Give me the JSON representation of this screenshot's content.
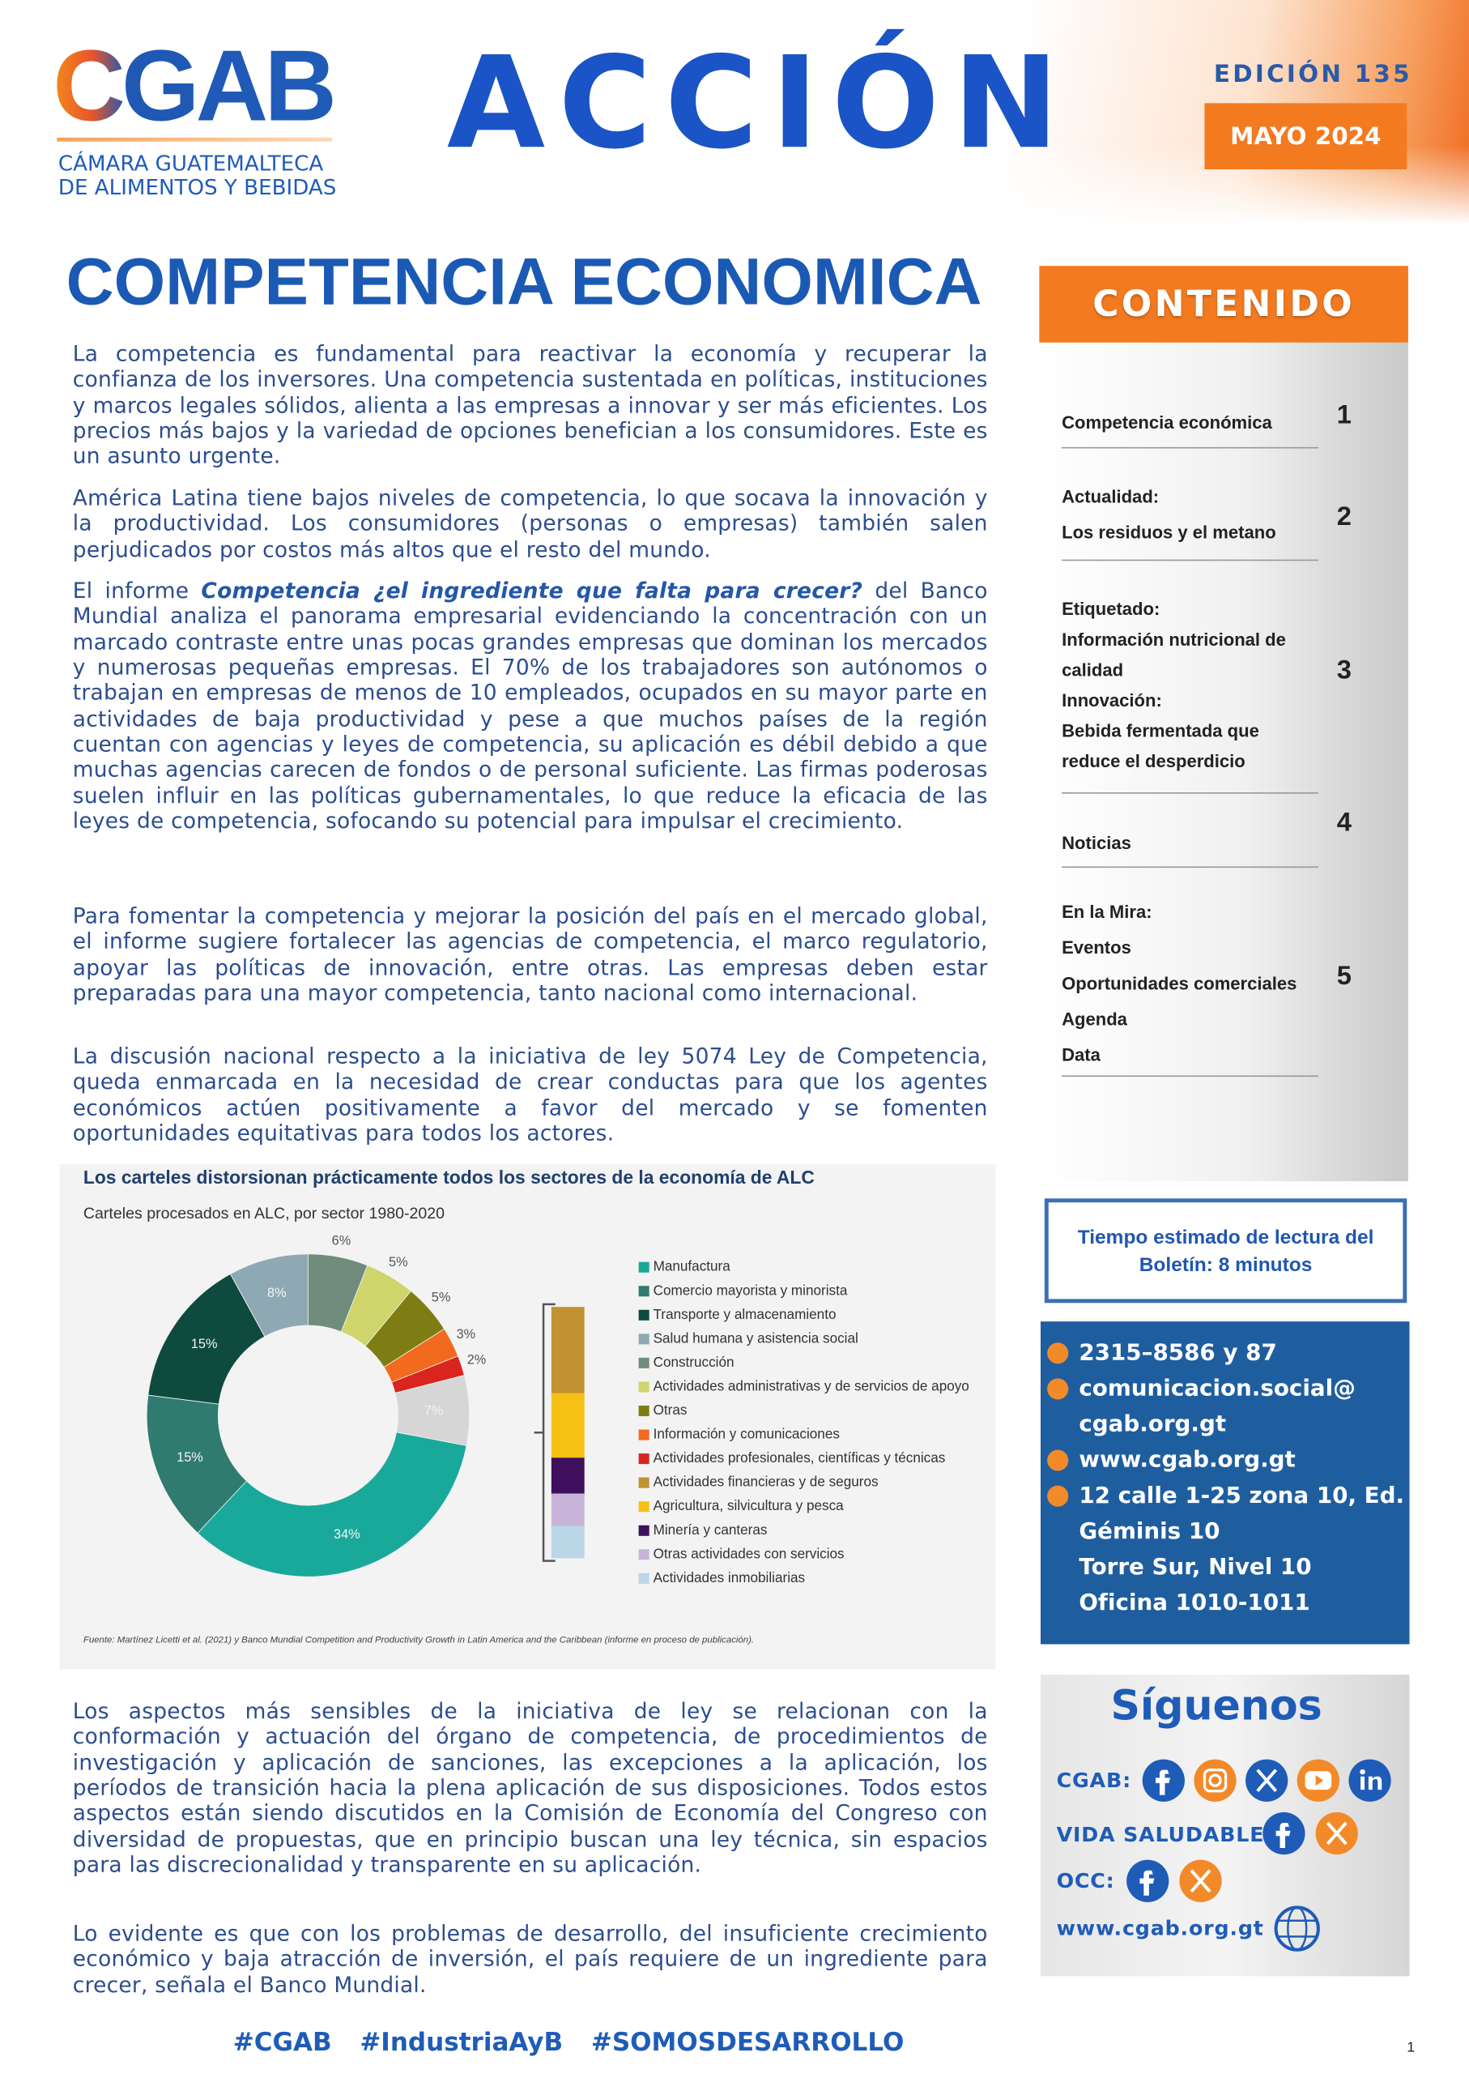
{
  "header": {
    "logo": "CGAB",
    "org_line1": "CÁMARA GUATEMALTECA",
    "org_line2": "DE ALIMENTOS Y BEBIDAS",
    "title": "ACCIÓN",
    "edition": "EDICIÓN 135",
    "date": "MAYO 2024"
  },
  "article": {
    "title": "COMPETENCIA ECONOMICA",
    "paragraphs": [
      "La competencia es fundamental para reactivar la economía y recuperar la confianza de los inversores. Una competencia  sustentada en políticas, instituciones y marcos legales sólidos, alienta a las empresas a innovar y ser más eficientes.  Los precios más bajos y la variedad de opciones benefician a los consumidores.  Este es un asunto urgente.",
      "América Latina tiene bajos niveles de competencia, lo que socava la innovación y la productividad. Los consumidores (personas o empresas) también salen perjudicados por costos más altos que el resto del mundo.",
      {
        "before": "El informe ",
        "emphasis": "Competencia ¿el ingrediente que falta para crecer?",
        "after": " del Banco Mundial analiza el panorama empresarial evidenciando la concentración con un marcado contraste entre unas pocas grandes empresas que dominan los mercados y numerosas pequeñas empresas. El 70% de los trabajadores son autónomos o trabajan en empresas de menos de 10 empleados, ocupados en su mayor parte en actividades de baja productividad y pese a que muchos países de la región cuentan con agencias y leyes de competencia, su aplicación es débil debido a que muchas agencias carecen de fondos o de personal suficiente. Las firmas poderosas suelen influir en las políticas gubernamentales, lo que reduce la eficacia de las leyes de competencia, sofocando su  potencial para impulsar el crecimiento."
      },
      "Para fomentar la competencia y mejorar la posición del país en el mercado global, el informe sugiere fortalecer las agencias de competencia, el marco regulatorio, apoyar las políticas de innovación, entre otras. Las empresas deben estar preparadas para una mayor competencia, tanto nacional como internacional.",
      "La discusión nacional respecto a la iniciativa de ley 5074 Ley de Competencia, queda enmarcada en la necesidad de crear conductas  para que los agentes económicos actúen positivamente a favor del mercado y se fomenten oportunidades equitativas para todos los actores.",
      "Los aspectos más sensibles de la iniciativa de ley se relacionan con la conformación y actuación del órgano de competencia, de procedimientos de investigación y aplicación de sanciones, las excepciones a la aplicación, los períodos de transición hacia la plena aplicación de sus disposiciones. Todos estos aspectos están siendo discutidos en la Comisión de Economía del Congreso con diversidad de propuestas, que en principio buscan una ley técnica, sin espacios para las discrecionalidad y transparente en su aplicación.",
      "Lo evidente es que con los problemas de desarrollo, del insuficiente crecimiento económico y baja atracción de inversión, el país requiere de un ingrediente para crecer,  señala el Banco Mundial."
    ]
  },
  "chart_data": {
    "type": "pie",
    "donut": true,
    "title": "Los carteles distorsionan prácticamente todos los sectores de la economía de ALC",
    "subtitle": "Carteles procesados en ALC, por sector 1980-2020",
    "source": "Fuente: Martínez Licetti et al. (2021) y Banco Mundial Competition and Productivity Growth in Latin America and the Caribbean (informe en proceso de publicación).",
    "categories": [
      "Manufactura",
      "Comercio mayorista y minorista",
      "Transporte y almacenamiento",
      "Salud humana y asistencia social",
      "Construcción",
      "Actividades administrativas y de servicios de apoyo",
      "Otras",
      "Información y comunicaciones",
      "Actividades profesionales, científicas y técnicas",
      null
    ],
    "values": [
      34,
      15,
      15,
      8,
      6,
      5,
      5,
      3,
      2,
      7
    ],
    "value_labels": [
      "34%",
      "15%",
      "15%",
      "8%",
      "6%",
      "5%",
      "5%",
      "3%",
      "2%",
      "7%"
    ],
    "colors": [
      "#19a99a",
      "#2f7b70",
      "#0f4a3e",
      "#8fa9b4",
      "#6f8c7c",
      "#cfd46b",
      "#7e7d14",
      "#f26a1e",
      "#d9251d",
      "#d6d6d6"
    ],
    "breakdown": {
      "type": "bar",
      "stacked": true,
      "categories": [
        "Actividades financieras y de seguros",
        "Agricultura, silvicultura y pesca",
        "Minería y canteras",
        "Otras actividades con servicios",
        "Actividades inmobiliarias"
      ],
      "values": [
        2.4,
        1.8,
        1.0,
        0.9,
        0.9
      ],
      "colors": [
        "#c19232",
        "#f6c113",
        "#3e0f5c",
        "#c9b4d9",
        "#bad6e7"
      ]
    }
  },
  "sidebar": {
    "contents_title": "CONTENIDO",
    "items": [
      {
        "lines": [
          "Competencia económica"
        ],
        "page": 1
      },
      {
        "lines": [
          "Actualidad:",
          "Los residuos y el metano"
        ],
        "page": 2
      },
      {
        "lines": [
          "Etiquetado:",
          "Información nutricional de calidad",
          "Innovación:",
          "Bebida fermentada que reduce el desperdicio"
        ],
        "page": 3
      },
      {
        "lines": [
          "Noticias"
        ],
        "page": 4
      },
      {
        "lines": [
          "En la Mira:",
          "Eventos",
          "Oportunidades comerciales",
          "Agenda",
          "Data"
        ],
        "page": 5
      }
    ],
    "reading_time": "Tiempo  estimado de  lectura del Boletín: 8 minutos",
    "contact": [
      [
        "2315–8586 y 87"
      ],
      [
        "comunicacion.social@",
        "cgab.org.gt"
      ],
      [
        "www.cgab.org.gt"
      ],
      [
        "12 calle 1-25 zona 10, Ed.",
        "Géminis 10",
        "Torre Sur, Nivel 10",
        "Oficina 1010-1011"
      ]
    ],
    "follow": {
      "title": "Síguenos",
      "rows": [
        "CGAB:",
        "VIDA SALUDABLE:",
        "OCC:"
      ],
      "website": "www.cgab.org.gt"
    }
  },
  "footer": {
    "hashtags": "#CGAB  #IndustriaAyB  #SOMOSDESARROLLO",
    "page": 1
  }
}
